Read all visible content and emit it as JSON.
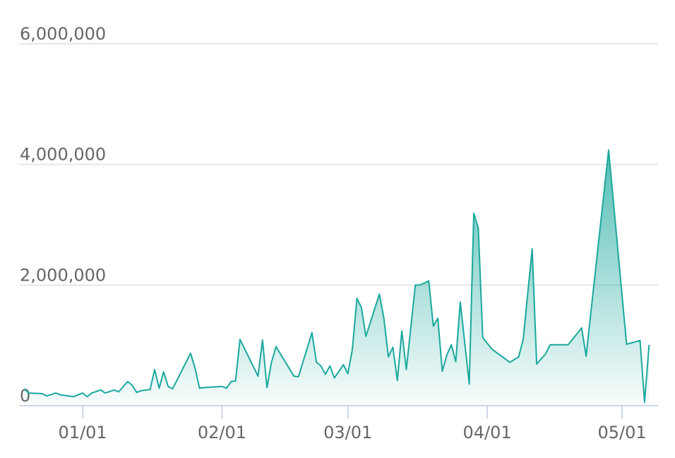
{
  "chart_data": {
    "type": "area",
    "x": [
      "12/19",
      "12/20",
      "12/23",
      "12/24",
      "12/26",
      "12/27",
      "12/30",
      "01/01",
      "01/02",
      "01/03",
      "01/05",
      "01/06",
      "01/08",
      "01/09",
      "01/11",
      "01/12",
      "01/13",
      "01/14",
      "01/16",
      "01/17",
      "01/18",
      "01/19",
      "01/20",
      "01/21",
      "01/25",
      "01/26",
      "01/27",
      "01/28",
      "02/01",
      "02/02",
      "02/03",
      "02/04",
      "02/05",
      "02/09",
      "02/10",
      "02/11",
      "02/12",
      "02/13",
      "02/17",
      "02/18",
      "02/21",
      "02/22",
      "02/23",
      "02/24",
      "02/25",
      "02/26",
      "02/28",
      "03/01",
      "03/02",
      "03/03",
      "03/04",
      "03/05",
      "03/08",
      "03/09",
      "03/10",
      "03/11",
      "03/12",
      "03/13",
      "03/14",
      "03/16",
      "03/17",
      "03/19",
      "03/20",
      "03/21",
      "03/22",
      "03/23",
      "03/24",
      "03/25",
      "03/26",
      "03/28",
      "03/29",
      "03/30",
      "03/31",
      "04/02",
      "04/06",
      "04/08",
      "04/09",
      "04/11",
      "04/12",
      "04/14",
      "04/15",
      "04/19",
      "04/22",
      "04/23",
      "04/28",
      "05/02",
      "05/05",
      "05/06",
      "05/07"
    ],
    "values": [
      280000,
      210000,
      200000,
      160000,
      210000,
      180000,
      150000,
      210000,
      150000,
      210000,
      260000,
      210000,
      260000,
      230000,
      400000,
      340000,
      220000,
      250000,
      270000,
      600000,
      290000,
      560000,
      320000,
      280000,
      870000,
      620000,
      290000,
      300000,
      320000,
      290000,
      400000,
      410000,
      1100000,
      490000,
      1090000,
      300000,
      720000,
      980000,
      490000,
      480000,
      1210000,
      720000,
      660000,
      520000,
      660000,
      460000,
      680000,
      530000,
      940000,
      1780000,
      1630000,
      1150000,
      1850000,
      1450000,
      810000,
      970000,
      420000,
      1240000,
      600000,
      2000000,
      2000000,
      2070000,
      1320000,
      1450000,
      570000,
      840000,
      1010000,
      730000,
      1720000,
      360000,
      3190000,
      2950000,
      1130000,
      940000,
      720000,
      810000,
      1100000,
      2600000,
      690000,
      860000,
      1010000,
      1010000,
      1290000,
      820000,
      4240000,
      1020000,
      1080000,
      60000,
      1010000
    ],
    "color": "#1ba89d",
    "xlim": [
      "12/18",
      "05/09"
    ],
    "xticks": [
      "01/01",
      "02/01",
      "03/01",
      "04/01",
      "05/01"
    ],
    "ylim": [
      0,
      6000000
    ],
    "yticks": [
      0,
      {
        "value": 2000000,
        "label": "2,000,000"
      },
      {
        "value": 4000000,
        "label": "4,000,000"
      },
      {
        "value": 6000000,
        "label": "6,000,000"
      }
    ],
    "grid": true
  }
}
